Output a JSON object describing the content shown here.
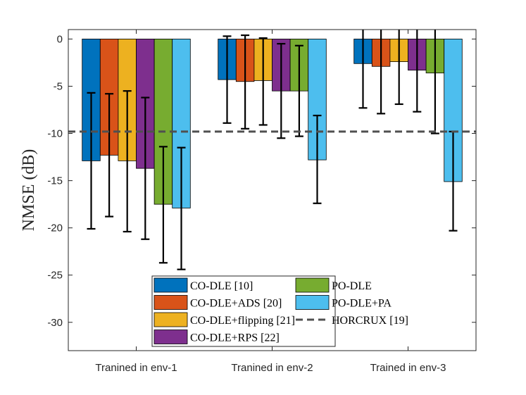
{
  "chart_data": {
    "type": "bar",
    "title": "",
    "xlabel": "",
    "ylabel": "NMSE (dB)",
    "ylim": [
      -33,
      1
    ],
    "yticks": [
      0,
      -5,
      -10,
      -15,
      -20,
      -25,
      -30
    ],
    "ytick_labels": [
      "0",
      "-5",
      "-10",
      "-15",
      "-20",
      "-25",
      "-30"
    ],
    "categories": [
      "Tranined in env-1",
      "Tranined in env-2",
      "Trained in env-3"
    ],
    "grid": false,
    "legend_position": "bottom-center",
    "series": [
      {
        "name": "CO-DLE [10]",
        "color": "#0072BD",
        "values": [
          -12.9,
          -4.3,
          -2.6
        ],
        "err_low": [
          -20.1,
          -8.9,
          -7.3
        ],
        "err_high": [
          -5.7,
          0.3,
          2.1
        ]
      },
      {
        "name": "CO-DLE+ADS [20]",
        "color": "#D95319",
        "values": [
          -12.3,
          -4.5,
          -2.9
        ],
        "err_low": [
          -18.8,
          -9.5,
          -7.9
        ],
        "err_high": [
          -5.8,
          0.4,
          2.1
        ]
      },
      {
        "name": "CO-DLE+flipping [21]",
        "color": "#EDB120",
        "values": [
          -12.9,
          -4.4,
          -2.4
        ],
        "err_low": [
          -20.4,
          -9.1,
          -6.9
        ],
        "err_high": [
          -5.5,
          0.1,
          2.1
        ]
      },
      {
        "name": "CO-DLE+RPS [22]",
        "color": "#7E2F8E",
        "values": [
          -13.7,
          -5.5,
          -3.3
        ],
        "err_low": [
          -21.2,
          -10.5,
          -7.7
        ],
        "err_high": [
          -6.2,
          -0.5,
          1.1
        ]
      },
      {
        "name": "PO-DLE",
        "color": "#77AC30",
        "values": [
          -17.5,
          -5.5,
          -3.6
        ],
        "err_low": [
          -23.7,
          -10.3,
          -10.0
        ],
        "err_high": [
          -11.4,
          -0.7,
          2.8
        ]
      },
      {
        "name": "PO-DLE+PA",
        "color": "#4DBEEE",
        "values": [
          -17.9,
          -12.8,
          -15.1
        ],
        "err_low": [
          -24.4,
          -17.4,
          -20.3
        ],
        "err_high": [
          -11.5,
          -8.1,
          -9.8
        ]
      }
    ],
    "reference_line": {
      "name": "HORCRUX [19]",
      "value": -9.8,
      "color": "#505050",
      "style": "dashed"
    }
  }
}
